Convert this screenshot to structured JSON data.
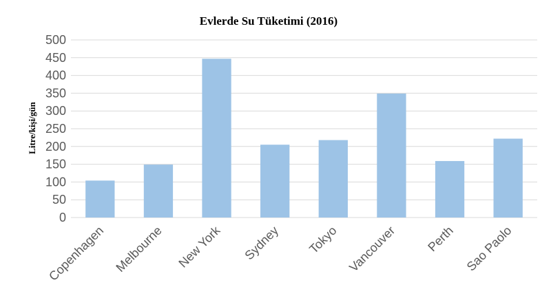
{
  "chart_data": {
    "type": "bar",
    "title": "Evlerde Su Tüketimi (2016)",
    "xlabel": "",
    "ylabel": "Litre/kişi/gün",
    "categories": [
      "Copenhagen",
      "Melbourne",
      "New York",
      "Sydney",
      "Tokyo",
      "Vancouver",
      "Perth",
      "Sao Paolo"
    ],
    "values": [
      104,
      149,
      447,
      205,
      218,
      349,
      159,
      222
    ],
    "ylim": [
      0,
      500
    ],
    "yticks": [
      0,
      50,
      100,
      150,
      200,
      250,
      300,
      350,
      400,
      450,
      500
    ],
    "grid": true,
    "legend": "none",
    "colors": {
      "bar": "#9dc3e6",
      "grid": "#d9d9d9",
      "tick_text": "#595959"
    }
  }
}
